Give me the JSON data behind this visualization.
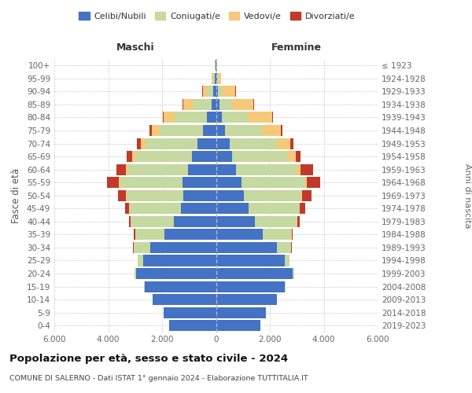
{
  "age_groups": [
    "0-4",
    "5-9",
    "10-14",
    "15-19",
    "20-24",
    "25-29",
    "30-34",
    "35-39",
    "40-44",
    "45-49",
    "50-54",
    "55-59",
    "60-64",
    "65-69",
    "70-74",
    "75-79",
    "80-84",
    "85-89",
    "90-94",
    "95-99",
    "100+"
  ],
  "birth_years": [
    "2019-2023",
    "2014-2018",
    "2009-2013",
    "2004-2008",
    "1999-2003",
    "1994-1998",
    "1989-1993",
    "1984-1988",
    "1979-1983",
    "1974-1978",
    "1969-1973",
    "1964-1968",
    "1959-1963",
    "1954-1958",
    "1949-1953",
    "1944-1948",
    "1939-1943",
    "1934-1938",
    "1929-1933",
    "1924-1928",
    "≤ 1923"
  ],
  "colors": {
    "celibi": "#4472C4",
    "coniugati": "#C5D9A0",
    "vedovi": "#F5C97A",
    "divorziati": "#C0392B"
  },
  "males": {
    "celibi": [
      1750,
      1950,
      2350,
      2650,
      2950,
      2700,
      2450,
      1900,
      1550,
      1300,
      1200,
      1250,
      1050,
      900,
      700,
      480,
      330,
      170,
      90,
      45,
      18
    ],
    "coniugati": [
      0,
      2,
      5,
      30,
      80,
      200,
      600,
      1100,
      1600,
      1900,
      2100,
      2300,
      2200,
      2100,
      1900,
      1600,
      1200,
      700,
      250,
      80,
      10
    ],
    "vedovi": [
      0,
      0,
      0,
      0,
      1,
      1,
      2,
      5,
      10,
      20,
      30,
      50,
      80,
      120,
      200,
      300,
      400,
      350,
      150,
      30,
      5
    ],
    "divorziati": [
      0,
      0,
      0,
      1,
      2,
      5,
      15,
      40,
      80,
      150,
      300,
      450,
      350,
      200,
      120,
      80,
      50,
      20,
      10,
      5,
      2
    ]
  },
  "females": {
    "celibi": [
      1650,
      1850,
      2250,
      2550,
      2850,
      2550,
      2250,
      1750,
      1450,
      1200,
      1050,
      950,
      750,
      600,
      500,
      350,
      230,
      140,
      70,
      35,
      12
    ],
    "coniugati": [
      0,
      2,
      5,
      20,
      60,
      180,
      550,
      1050,
      1550,
      1900,
      2100,
      2350,
      2250,
      2050,
      1750,
      1350,
      950,
      450,
      150,
      50,
      5
    ],
    "vedovi": [
      0,
      0,
      0,
      0,
      1,
      1,
      2,
      5,
      10,
      20,
      50,
      80,
      150,
      300,
      500,
      700,
      900,
      800,
      500,
      100,
      10
    ],
    "divorziati": [
      0,
      0,
      0,
      1,
      2,
      5,
      20,
      50,
      100,
      200,
      350,
      500,
      450,
      180,
      120,
      80,
      40,
      20,
      10,
      5,
      2
    ]
  },
  "xlim": 6000,
  "xtick_vals": [
    -6000,
    -4000,
    -2000,
    0,
    2000,
    4000,
    6000
  ],
  "xtick_labels": [
    "6.000",
    "4.000",
    "2.000",
    "0",
    "2.000",
    "4.000",
    "6.000"
  ],
  "title": "Popolazione per età, sesso e stato civile - 2024",
  "subtitle": "COMUNE DI SALERNO - Dati ISTAT 1° gennaio 2024 - Elaborazione TUTTITALIA.IT",
  "ylabel_left": "Fasce di età",
  "ylabel_right": "Anni di nascita",
  "label_maschi": "Maschi",
  "label_femmine": "Femmine",
  "legend_labels": [
    "Celibi/Nubili",
    "Coniugati/e",
    "Vedovi/e",
    "Divorziati/e"
  ],
  "background_color": "#FFFFFF",
  "grid_color": "#CCCCCC"
}
